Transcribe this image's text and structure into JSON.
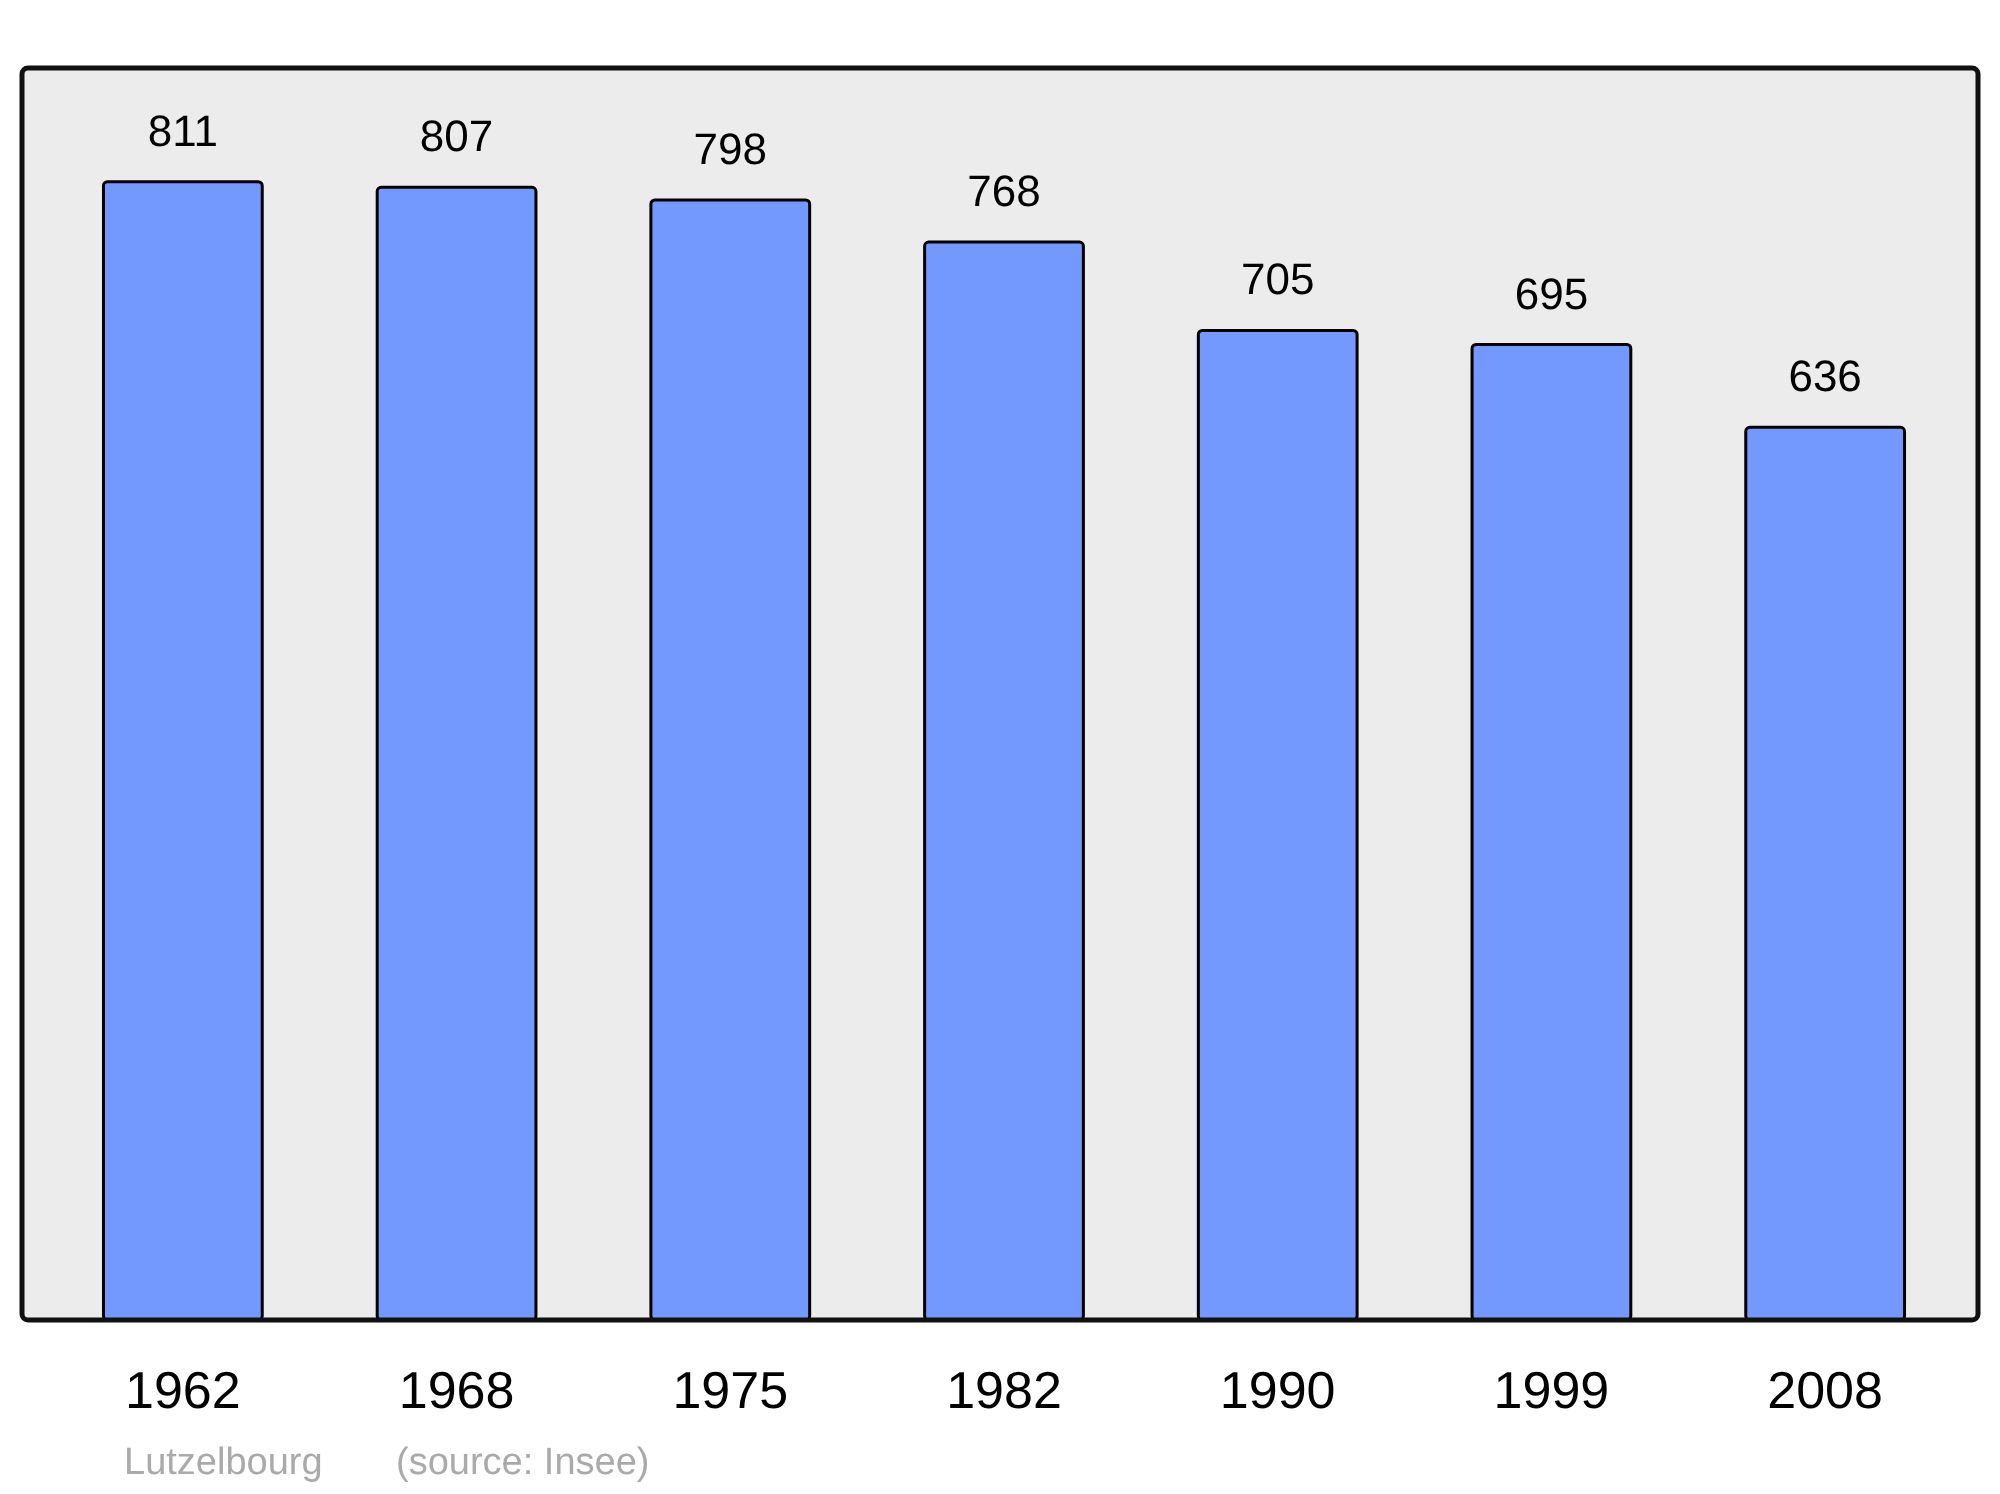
{
  "chart_data": {
    "type": "bar",
    "categories": [
      "1962",
      "1968",
      "1975",
      "1982",
      "1990",
      "1999",
      "2008"
    ],
    "values": [
      811,
      807,
      798,
      768,
      705,
      695,
      636
    ],
    "color": "#7399ff",
    "ylim": [
      0,
      892
    ],
    "data_labels": true,
    "annotations": [
      "Lutzelbourg",
      "(source: Insee)"
    ]
  }
}
